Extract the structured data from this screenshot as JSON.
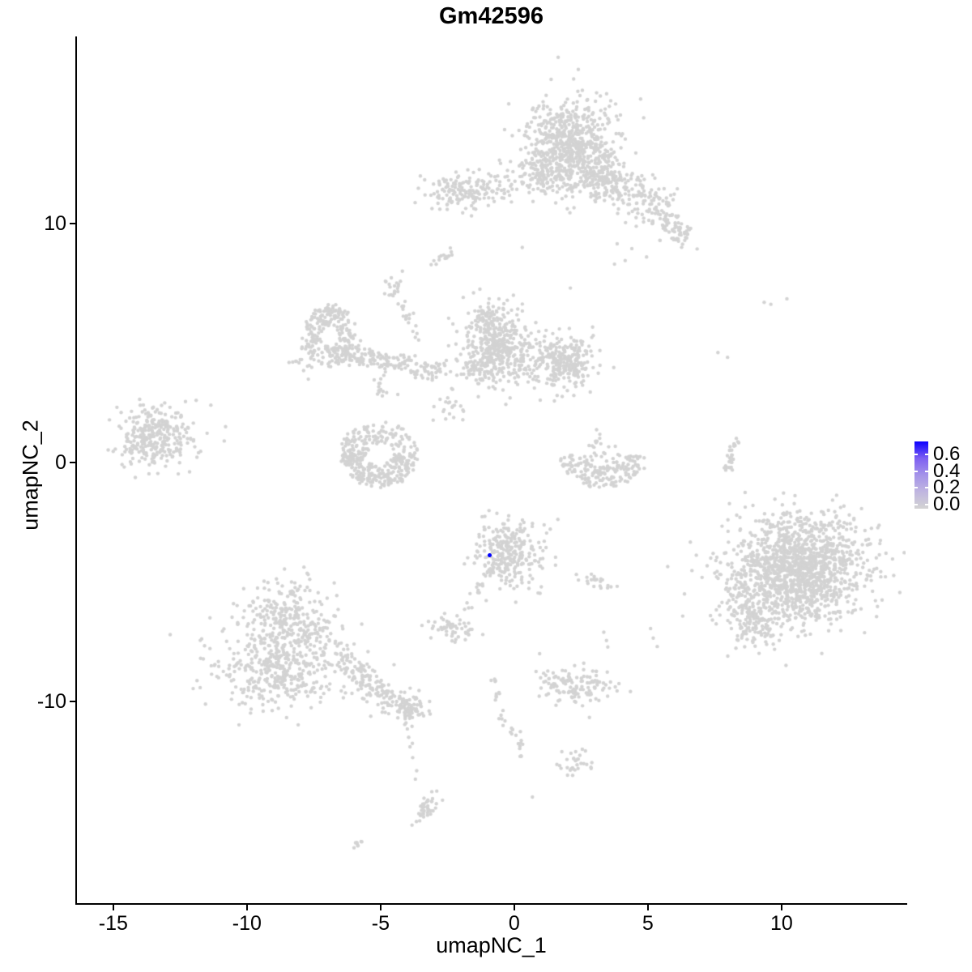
{
  "title": "Gm42596",
  "axes": {
    "x_label": "umapNC_1",
    "y_label": "umapNC_2"
  },
  "colors": {
    "background": "#FFFFFF",
    "axis": "#000000",
    "point_low": "#D3D3D3",
    "point_high": "#0000FF"
  },
  "legend": {
    "labels": [
      "0.6",
      "0.4",
      "0.2",
      "0.0"
    ],
    "label_values": [
      0.6,
      0.4,
      0.2,
      0.0
    ],
    "low_color": "#D3D3D3",
    "high_color": "#0B00FF",
    "gradient_stops": [
      "#d3d3d3",
      "#c0b6e0",
      "#a493e9",
      "#7d5ff2",
      "#0b00ff"
    ]
  },
  "chart_data": {
    "type": "scatter",
    "title": "Gm42596",
    "xlabel": "umapNC_1",
    "ylabel": "umapNC_2",
    "xlim": [
      -16.36,
      14.64
    ],
    "ylim": [
      -18.44,
      17.76
    ],
    "x_ticks": [
      {
        "value": -15,
        "label": "-15"
      },
      {
        "value": -10,
        "label": "-10"
      },
      {
        "value": -5,
        "label": "-5"
      },
      {
        "value": 0,
        "label": "0"
      },
      {
        "value": 5,
        "label": "5"
      },
      {
        "value": 10,
        "label": "10"
      }
    ],
    "y_ticks": [
      {
        "value": 10,
        "label": "10"
      },
      {
        "value": 0,
        "label": "0"
      },
      {
        "value": -10,
        "label": "-10"
      }
    ],
    "grid": false,
    "legend_position": "right",
    "colorbar_range": [
      0.0,
      0.7
    ],
    "point_radius_px": 2.2,
    "highlight_point": {
      "x": -0.93,
      "y": -3.87,
      "value": 0.7,
      "color": "#0000FF"
    },
    "clusters": [
      {
        "type": "gauss",
        "cx": 2.1,
        "cy": 13.4,
        "sx": 0.83,
        "sy": 1.0,
        "n": 620
      },
      {
        "type": "gauss",
        "cx": 1.1,
        "cy": 12.0,
        "sx": 0.55,
        "sy": 0.5,
        "n": 120
      },
      {
        "type": "gauss",
        "cx": 3.0,
        "cy": 12.2,
        "sx": 0.55,
        "sy": 0.45,
        "n": 100
      },
      {
        "type": "gauss",
        "cx": -2.0,
        "cy": 11.4,
        "sx": 0.66,
        "sy": 0.38,
        "n": 140
      },
      {
        "type": "gauss",
        "cx": -0.5,
        "cy": 11.5,
        "sx": 0.45,
        "sy": 0.3,
        "n": 35
      },
      {
        "type": "band",
        "x1": 2.8,
        "y1": 12.0,
        "x2": 5.6,
        "y2": 10.6,
        "w": 0.45,
        "n": 210
      },
      {
        "type": "gauss",
        "cx": 6.05,
        "cy": 9.75,
        "sx": 0.4,
        "sy": 0.28,
        "rot": -30,
        "n": 55
      },
      {
        "type": "band",
        "x1": 5.0,
        "y1": 10.4,
        "x2": 5.9,
        "y2": 9.9,
        "w": 0.15,
        "n": 10
      },
      {
        "type": "pts",
        "points": [
          [
            3.85,
            9.15
          ],
          [
            4.4,
            8.95
          ],
          [
            4.95,
            8.6
          ],
          [
            4.15,
            8.45
          ],
          [
            3.75,
            8.3
          ],
          [
            5.45,
            9.3
          ],
          [
            2.1,
            7.3
          ],
          [
            0.3,
            9.0
          ]
        ]
      },
      {
        "type": "gauss",
        "cx": -2.65,
        "cy": 8.62,
        "sx": 0.3,
        "sy": 0.1,
        "rot": 38,
        "n": 14
      },
      {
        "type": "gauss",
        "cx": -4.5,
        "cy": 7.3,
        "sx": 0.2,
        "sy": 0.27,
        "n": 20
      },
      {
        "type": "band",
        "x1": -4.15,
        "y1": 6.7,
        "x2": -3.6,
        "y2": 5.1,
        "w": 0.12,
        "n": 20
      },
      {
        "type": "ring",
        "cx": -6.9,
        "cy": 5.3,
        "r0": 0.35,
        "r1": 0.95,
        "a0": 0,
        "a1": 360,
        "ex": 1,
        "ey": 1.35,
        "n": 240
      },
      {
        "type": "gauss",
        "cx": -7.9,
        "cy": 4.3,
        "sx": 0.25,
        "sy": 0.3,
        "n": 18
      },
      {
        "type": "band",
        "x1": -6.25,
        "y1": 4.55,
        "x2": -2.65,
        "y2": 3.8,
        "w": 0.22,
        "n": 160
      },
      {
        "type": "gauss",
        "cx": -4.9,
        "cy": 3.15,
        "sx": 0.18,
        "sy": 0.22,
        "n": 15
      },
      {
        "type": "gauss",
        "cx": -0.6,
        "cy": 4.8,
        "sx": 0.64,
        "sy": 0.8,
        "n": 430
      },
      {
        "type": "gauss",
        "cx": -0.9,
        "cy": 6.1,
        "sx": 0.35,
        "sy": 0.3,
        "n": 40
      },
      {
        "type": "gauss",
        "cx": -1.5,
        "cy": 3.9,
        "sx": 0.3,
        "sy": 0.3,
        "n": 40
      },
      {
        "type": "gauss",
        "cx": 1.8,
        "cy": 4.2,
        "sx": 0.56,
        "sy": 0.51,
        "n": 270
      },
      {
        "type": "gauss",
        "cx": -2.35,
        "cy": 2.45,
        "sx": 0.4,
        "sy": 0.45,
        "n": 22
      },
      {
        "type": "ring",
        "cx": -5.05,
        "cy": 0.35,
        "r0": 0.5,
        "r1": 1.45,
        "a0": 0,
        "a1": 360,
        "ex": 1,
        "ey": 0.9,
        "n": 230
      },
      {
        "type": "ring",
        "cx": -5.05,
        "cy": 0.35,
        "r0": 0.55,
        "r1": 1.5,
        "a0": 180,
        "a1": 360,
        "ex": 1,
        "ey": 0.9,
        "n": 130
      },
      {
        "type": "gauss",
        "cx": -13.5,
        "cy": 1.05,
        "sx": 0.7,
        "sy": 0.65,
        "rot": 8,
        "n": 310
      },
      {
        "type": "pts",
        "points": [
          [
            -11.9,
            2.6
          ],
          [
            -11.35,
            2.4
          ],
          [
            -10.8,
            1.5
          ],
          [
            -10.85,
            0.9
          ],
          [
            -12.3,
            2.55
          ]
        ]
      },
      {
        "type": "ring",
        "cx": 3.3,
        "cy": 0.35,
        "r0": 0.5,
        "r1": 1.6,
        "a0": 185,
        "a1": 355,
        "ex": 1,
        "ey": 0.85,
        "n": 175
      },
      {
        "type": "gauss",
        "cx": 3.15,
        "cy": 0.9,
        "sx": 0.3,
        "sy": 0.45,
        "n": 18
      },
      {
        "type": "band",
        "x1": 7.95,
        "y1": -0.5,
        "x2": 8.3,
        "y2": 1.0,
        "w": 0.09,
        "n": 22
      },
      {
        "type": "gauss",
        "cx": 8.1,
        "cy": 0.1,
        "sx": 0.12,
        "sy": 0.2,
        "n": 8
      },
      {
        "type": "pts",
        "points": [
          [
            8.05,
            -1.72
          ],
          [
            7.62,
            4.6
          ],
          [
            7.98,
            4.4
          ],
          [
            9.35,
            6.7
          ],
          [
            9.6,
            6.62
          ],
          [
            10.2,
            6.85
          ],
          [
            7.35,
            -4.0
          ]
        ]
      },
      {
        "type": "gauss",
        "cx": 10.6,
        "cy": -4.55,
        "sx": 1.3,
        "sy": 1.05,
        "rot": 20,
        "n": 1480
      },
      {
        "type": "gauss",
        "cx": 8.9,
        "cy": -6.4,
        "sx": 0.4,
        "sy": 0.75,
        "rot": 15,
        "n": 120
      },
      {
        "type": "gauss",
        "cx": 10.1,
        "cy": -2.5,
        "sx": 0.75,
        "sy": 0.3,
        "n": 55
      },
      {
        "type": "gauss",
        "cx": -0.25,
        "cy": -3.8,
        "sx": 0.6,
        "sy": 0.68,
        "n": 290
      },
      {
        "type": "band",
        "x1": -1.1,
        "y1": -4.75,
        "x2": -1.75,
        "y2": -6.2,
        "w": 0.09,
        "n": 15
      },
      {
        "type": "gauss",
        "cx": -2.3,
        "cy": -7.0,
        "sx": 0.48,
        "sy": 0.28,
        "rot": -10,
        "n": 55
      },
      {
        "type": "gauss",
        "cx": 3.0,
        "cy": -4.95,
        "sx": 0.4,
        "sy": 0.17,
        "rot": -18,
        "n": 22
      },
      {
        "type": "pts",
        "points": [
          [
            3.35,
            -7.1
          ],
          [
            3.45,
            -7.45
          ],
          [
            3.5,
            -7.72
          ],
          [
            5.1,
            -6.95
          ],
          [
            5.2,
            -7.35
          ],
          [
            5.35,
            -7.7
          ]
        ]
      },
      {
        "type": "gauss",
        "cx": 2.35,
        "cy": -9.35,
        "sx": 0.68,
        "sy": 0.35,
        "n": 125
      },
      {
        "type": "pts",
        "points": [
          [
            1.8,
            -8.7
          ],
          [
            2.05,
            -8.85
          ],
          [
            2.6,
            -8.4
          ],
          [
            1.55,
            -8.95
          ],
          [
            0.95,
            -8.0
          ]
        ]
      },
      {
        "type": "gauss",
        "cx": 2.35,
        "cy": -12.55,
        "sx": 0.3,
        "sy": 0.28,
        "n": 30
      },
      {
        "type": "pts",
        "points": [
          [
            1.78,
            -12.1
          ],
          [
            0.68,
            -14.0
          ]
        ]
      },
      {
        "type": "gauss",
        "cx": -8.55,
        "cy": -6.15,
        "sx": 0.75,
        "sy": 0.7,
        "n": 170
      },
      {
        "type": "gauss",
        "cx": -8.85,
        "cy": -7.7,
        "sx": 1.15,
        "sy": 0.75,
        "n": 250
      },
      {
        "type": "gauss",
        "cx": -8.7,
        "cy": -8.95,
        "sx": 1.3,
        "sy": 0.7,
        "n": 250
      },
      {
        "type": "gauss",
        "cx": -7.1,
        "cy": -7.3,
        "sx": 0.45,
        "sy": 0.7,
        "n": 35
      },
      {
        "type": "band",
        "x1": -6.5,
        "y1": -8.25,
        "x2": -4.45,
        "y2": -10.05,
        "w": 0.26,
        "n": 125
      },
      {
        "type": "gauss",
        "cx": -3.95,
        "cy": -10.35,
        "sx": 0.48,
        "sy": 0.35,
        "n": 85
      },
      {
        "type": "pts",
        "points": [
          [
            -4.0,
            -11.15
          ],
          [
            -3.95,
            -11.5
          ],
          [
            -3.9,
            -11.9
          ],
          [
            -3.8,
            -12.35
          ],
          [
            -3.65,
            -12.9
          ],
          [
            -3.7,
            -13.25
          ],
          [
            -4.05,
            -10.9
          ]
        ]
      },
      {
        "type": "gauss",
        "cx": -3.3,
        "cy": -14.5,
        "sx": 0.5,
        "sy": 0.13,
        "rot": 58,
        "n": 45
      },
      {
        "type": "gauss",
        "cx": -5.9,
        "cy": -16.0,
        "sx": 0.17,
        "sy": 0.06,
        "rot": 35,
        "n": 8
      },
      {
        "type": "band",
        "x1": -0.75,
        "y1": -9.05,
        "x2": -0.5,
        "y2": -10.6,
        "w": 0.07,
        "n": 12
      },
      {
        "type": "band",
        "x1": -0.5,
        "y1": -10.6,
        "x2": 0.05,
        "y2": -11.6,
        "w": 0.07,
        "n": 8
      },
      {
        "type": "gauss",
        "cx": 0.18,
        "cy": -11.75,
        "sx": 0.1,
        "sy": 0.33,
        "n": 12
      }
    ]
  }
}
